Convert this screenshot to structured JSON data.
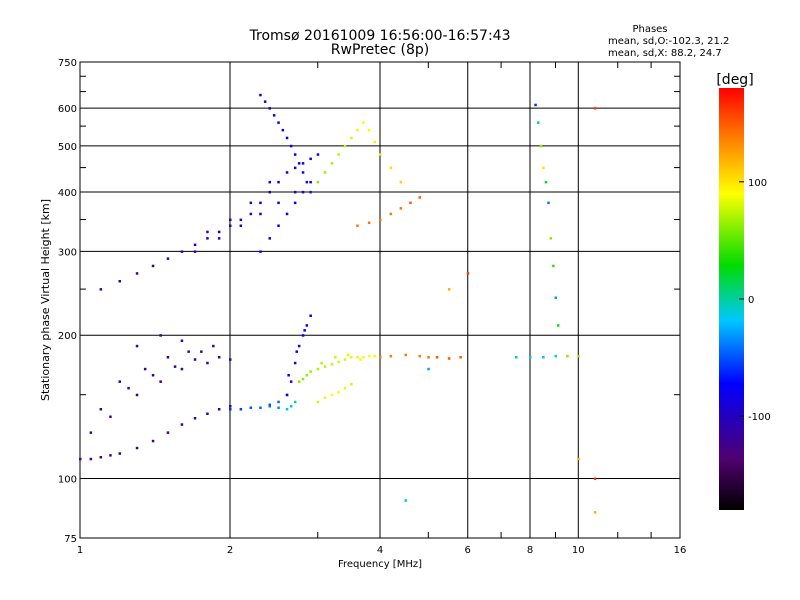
{
  "chart_data": {
    "type": "scatter",
    "title": "Tromsø 20161009 16:56:00-16:57:43",
    "subtitle": "RwPretec (8p)",
    "xlabel": "Frequency [MHz]",
    "ylabel": "Stationary phase Virtual Height [km]",
    "x_scale": "log",
    "y_scale": "log",
    "xlim": [
      1,
      16
    ],
    "ylim": [
      75,
      750
    ],
    "x_ticks": [
      1,
      2,
      4,
      6,
      8,
      10,
      16
    ],
    "x_tick_labels": [
      "1",
      "2",
      "4",
      "6",
      "8",
      "10",
      "16"
    ],
    "y_ticks": [
      75,
      100,
      200,
      300,
      400,
      500,
      600,
      750
    ],
    "y_tick_labels": [
      "75",
      "100",
      "200",
      "300",
      "400",
      "500",
      "600",
      "750"
    ],
    "grid": true,
    "stats": {
      "heading": "Phases",
      "line1": "mean, sd,O:-102.3, 21.2",
      "line2": "mean, sd,X:  88.2, 24.7"
    },
    "colorbar": {
      "label": "[deg]",
      "ticks": [
        100,
        0,
        -100
      ],
      "tick_labels": [
        "100",
        "0",
        "-100"
      ],
      "range": [
        -180,
        180
      ]
    },
    "series": [
      {
        "x": [
          1.0,
          1.05,
          1.1,
          1.15,
          1.2,
          1.3,
          1.4,
          1.5,
          1.6,
          1.7,
          1.8,
          1.9,
          2.0
        ],
        "y": [
          110,
          110,
          111,
          112,
          113,
          116,
          120,
          125,
          130,
          134,
          137,
          140,
          142
        ],
        "phase": [
          -130,
          -130,
          -128,
          -125,
          -125,
          -122,
          -120,
          -118,
          -115,
          -112,
          -110,
          -108,
          -105
        ]
      },
      {
        "x": [
          1.05,
          1.15,
          1.3,
          1.45,
          1.6,
          1.8,
          2.0,
          1.1,
          1.25,
          1.4,
          1.55,
          1.7,
          1.9,
          1.2,
          1.35,
          1.5,
          1.65,
          1.85,
          1.3,
          1.45,
          1.6,
          1.75
        ],
        "y": [
          125,
          135,
          150,
          160,
          170,
          175,
          178,
          140,
          155,
          165,
          172,
          178,
          180,
          160,
          170,
          180,
          185,
          190,
          190,
          200,
          195,
          185
        ],
        "phase": [
          -125,
          -122,
          -120,
          -118,
          -118,
          -115,
          -112,
          -125,
          -120,
          -118,
          -116,
          -114,
          -112,
          -122,
          -120,
          -118,
          -116,
          -114,
          -124,
          -122,
          -120,
          -118
        ]
      },
      {
        "x": [
          2.0,
          2.1,
          2.2,
          2.3,
          2.4,
          2.5,
          2.6,
          2.65,
          2.7,
          2.6,
          2.5,
          2.4
        ],
        "y": [
          140,
          140,
          141,
          141,
          142,
          141,
          140,
          142,
          145,
          150,
          145,
          143
        ],
        "phase": [
          -60,
          -55,
          -50,
          -45,
          -40,
          -35,
          -20,
          -10,
          0,
          -30,
          -45,
          -50
        ]
      },
      {
        "x": [
          2.6,
          2.65,
          2.7,
          2.75,
          2.8,
          2.85,
          2.9,
          2.72,
          2.82,
          2.62
        ],
        "y": [
          150,
          160,
          175,
          190,
          200,
          210,
          220,
          185,
          205,
          165
        ],
        "phase": [
          -90,
          -88,
          -85,
          -85,
          -80,
          -80,
          -78,
          -86,
          -82,
          -89
        ]
      },
      {
        "x": [
          2.75,
          2.8,
          2.85,
          2.9,
          3.0,
          3.1,
          3.2,
          3.3,
          3.4,
          3.5,
          3.6,
          3.7,
          3.8,
          3.9,
          4.0,
          3.05,
          3.25,
          3.45,
          3.65
        ],
        "y": [
          160,
          162,
          165,
          168,
          170,
          172,
          174,
          176,
          178,
          180,
          180,
          180,
          181,
          181,
          180,
          175,
          180,
          182,
          178
        ],
        "phase": [
          60,
          62,
          64,
          66,
          70,
          72,
          74,
          76,
          80,
          82,
          84,
          86,
          90,
          92,
          94,
          70,
          76,
          82,
          86
        ]
      },
      {
        "x": [
          3.0,
          3.1,
          3.2,
          3.3,
          3.4,
          3.5
        ],
        "y": [
          145,
          148,
          150,
          152,
          155,
          158
        ],
        "phase": [
          80,
          84,
          88,
          92,
          96,
          100
        ]
      },
      {
        "x": [
          4.0,
          4.2,
          4.5,
          4.8,
          5.0,
          5.2,
          5.5,
          5.8,
          7.5,
          8.0,
          8.5,
          9.0,
          9.5,
          10.0
        ],
        "y": [
          180,
          181,
          182,
          181,
          180,
          180,
          179,
          180,
          180,
          180,
          180,
          181,
          181,
          181
        ],
        "phase": [
          140,
          140,
          140,
          140,
          140,
          150,
          150,
          150,
          -20,
          -20,
          -20,
          -20,
          60,
          60
        ]
      },
      {
        "x": [
          1.1,
          1.2,
          1.3,
          1.4,
          1.5,
          1.6,
          1.7,
          1.8,
          1.9,
          2.0,
          2.1,
          2.2,
          2.3,
          2.4,
          2.5,
          2.6,
          2.7,
          2.8,
          2.9,
          3.0,
          1.7,
          1.9,
          2.1,
          2.3,
          2.5,
          2.7,
          1.8,
          2.0,
          2.2,
          2.4
        ],
        "y": [
          250,
          260,
          270,
          280,
          290,
          300,
          310,
          320,
          330,
          340,
          350,
          360,
          380,
          400,
          420,
          440,
          450,
          460,
          470,
          480,
          300,
          320,
          340,
          360,
          380,
          400,
          330,
          350,
          380,
          420
        ],
        "phase": [
          -120,
          -118,
          -116,
          -114,
          -112,
          -110,
          -108,
          -106,
          -104,
          -102,
          -100,
          -98,
          -96,
          -94,
          -92,
          -90,
          -88,
          -86,
          -84,
          -82,
          -110,
          -106,
          -102,
          -98,
          -94,
          -90,
          -108,
          -104,
          -100,
          -96
        ]
      },
      {
        "x": [
          2.3,
          2.35,
          2.4,
          2.45,
          2.5,
          2.55,
          2.6,
          2.65,
          2.7,
          2.75,
          2.8,
          2.85,
          2.9,
          2.3,
          2.4,
          2.5,
          2.6,
          2.7,
          2.8,
          2.9
        ],
        "y": [
          640,
          620,
          600,
          580,
          560,
          540,
          520,
          500,
          480,
          460,
          440,
          420,
          400,
          300,
          320,
          340,
          360,
          380,
          400,
          420
        ],
        "phase": [
          -90,
          -88,
          -86,
          -84,
          -82,
          -80,
          -78,
          -76,
          -74,
          -72,
          -70,
          -68,
          -66,
          -70,
          -72,
          -74,
          -76,
          -78,
          -80,
          -82
        ]
      },
      {
        "x": [
          3.0,
          3.1,
          3.2,
          3.3,
          3.4,
          3.5,
          3.6,
          3.7,
          3.8,
          3.9,
          4.0,
          4.2,
          4.4
        ],
        "y": [
          420,
          440,
          460,
          480,
          500,
          520,
          540,
          560,
          540,
          510,
          480,
          450,
          420
        ],
        "phase": [
          60,
          64,
          68,
          72,
          76,
          80,
          84,
          88,
          92,
          96,
          100,
          104,
          108
        ]
      },
      {
        "x": [
          3.6,
          3.8,
          4.0,
          4.2,
          4.4,
          4.6,
          4.8
        ],
        "y": [
          340,
          345,
          350,
          360,
          370,
          380,
          390
        ],
        "phase": [
          140,
          140,
          140,
          140,
          140,
          150,
          150
        ]
      },
      {
        "x": [
          8.2,
          8.3,
          8.4,
          8.5,
          8.6,
          8.7,
          8.8,
          8.9,
          9.0,
          9.1
        ],
        "y": [
          610,
          560,
          500,
          450,
          420,
          380,
          320,
          280,
          240,
          210
        ],
        "phase": [
          -60,
          0,
          60,
          100,
          20,
          -40,
          60,
          40,
          -30,
          30
        ]
      },
      {
        "x": [
          4.5,
          5.0,
          5.5,
          6.0,
          10.0,
          10.8,
          10.8,
          10.8
        ],
        "y": [
          90,
          170,
          250,
          270,
          110,
          100,
          85,
          600
        ],
        "phase": [
          -20,
          -30,
          120,
          160,
          120,
          160,
          120,
          160
        ]
      }
    ]
  }
}
